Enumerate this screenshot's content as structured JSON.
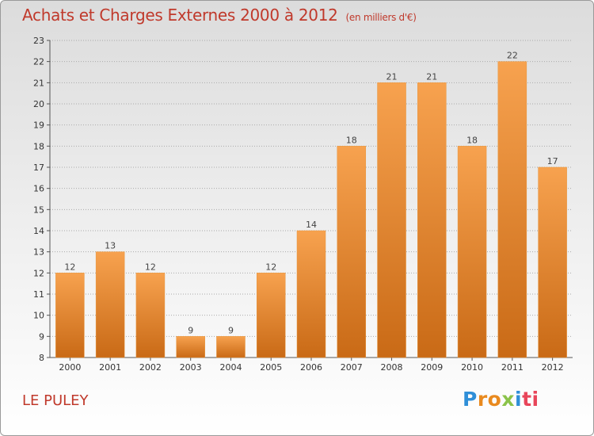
{
  "title": "Achats et Charges Externes 2000 à 2012",
  "subtitle": "(en milliers d'€)",
  "place": "LE PULEY",
  "logo_letters": [
    "P",
    "r",
    "o",
    "x",
    "i",
    "ti"
  ],
  "colors": {
    "title": "#c0392b",
    "bar_light": "#f7a24f",
    "bar_dark": "#c96a16",
    "axis": "#555555",
    "grid": "#aaaaaa"
  },
  "chart_data": {
    "type": "bar",
    "title": "Achats et Charges Externes 2000 à 2012",
    "subtitle": "(en milliers d'€)",
    "xlabel": "",
    "ylabel": "",
    "categories": [
      "2000",
      "2001",
      "2002",
      "2003",
      "2004",
      "2005",
      "2006",
      "2007",
      "2008",
      "2009",
      "2010",
      "2011",
      "2012"
    ],
    "values": [
      12,
      13,
      12,
      9,
      9,
      12,
      14,
      18,
      21,
      21,
      18,
      22,
      17
    ],
    "ylim": [
      8,
      23
    ],
    "yticks": [
      8,
      9,
      10,
      11,
      12,
      13,
      14,
      15,
      16,
      17,
      18,
      19,
      20,
      21,
      22,
      23
    ],
    "grid": true,
    "legend": "none"
  }
}
